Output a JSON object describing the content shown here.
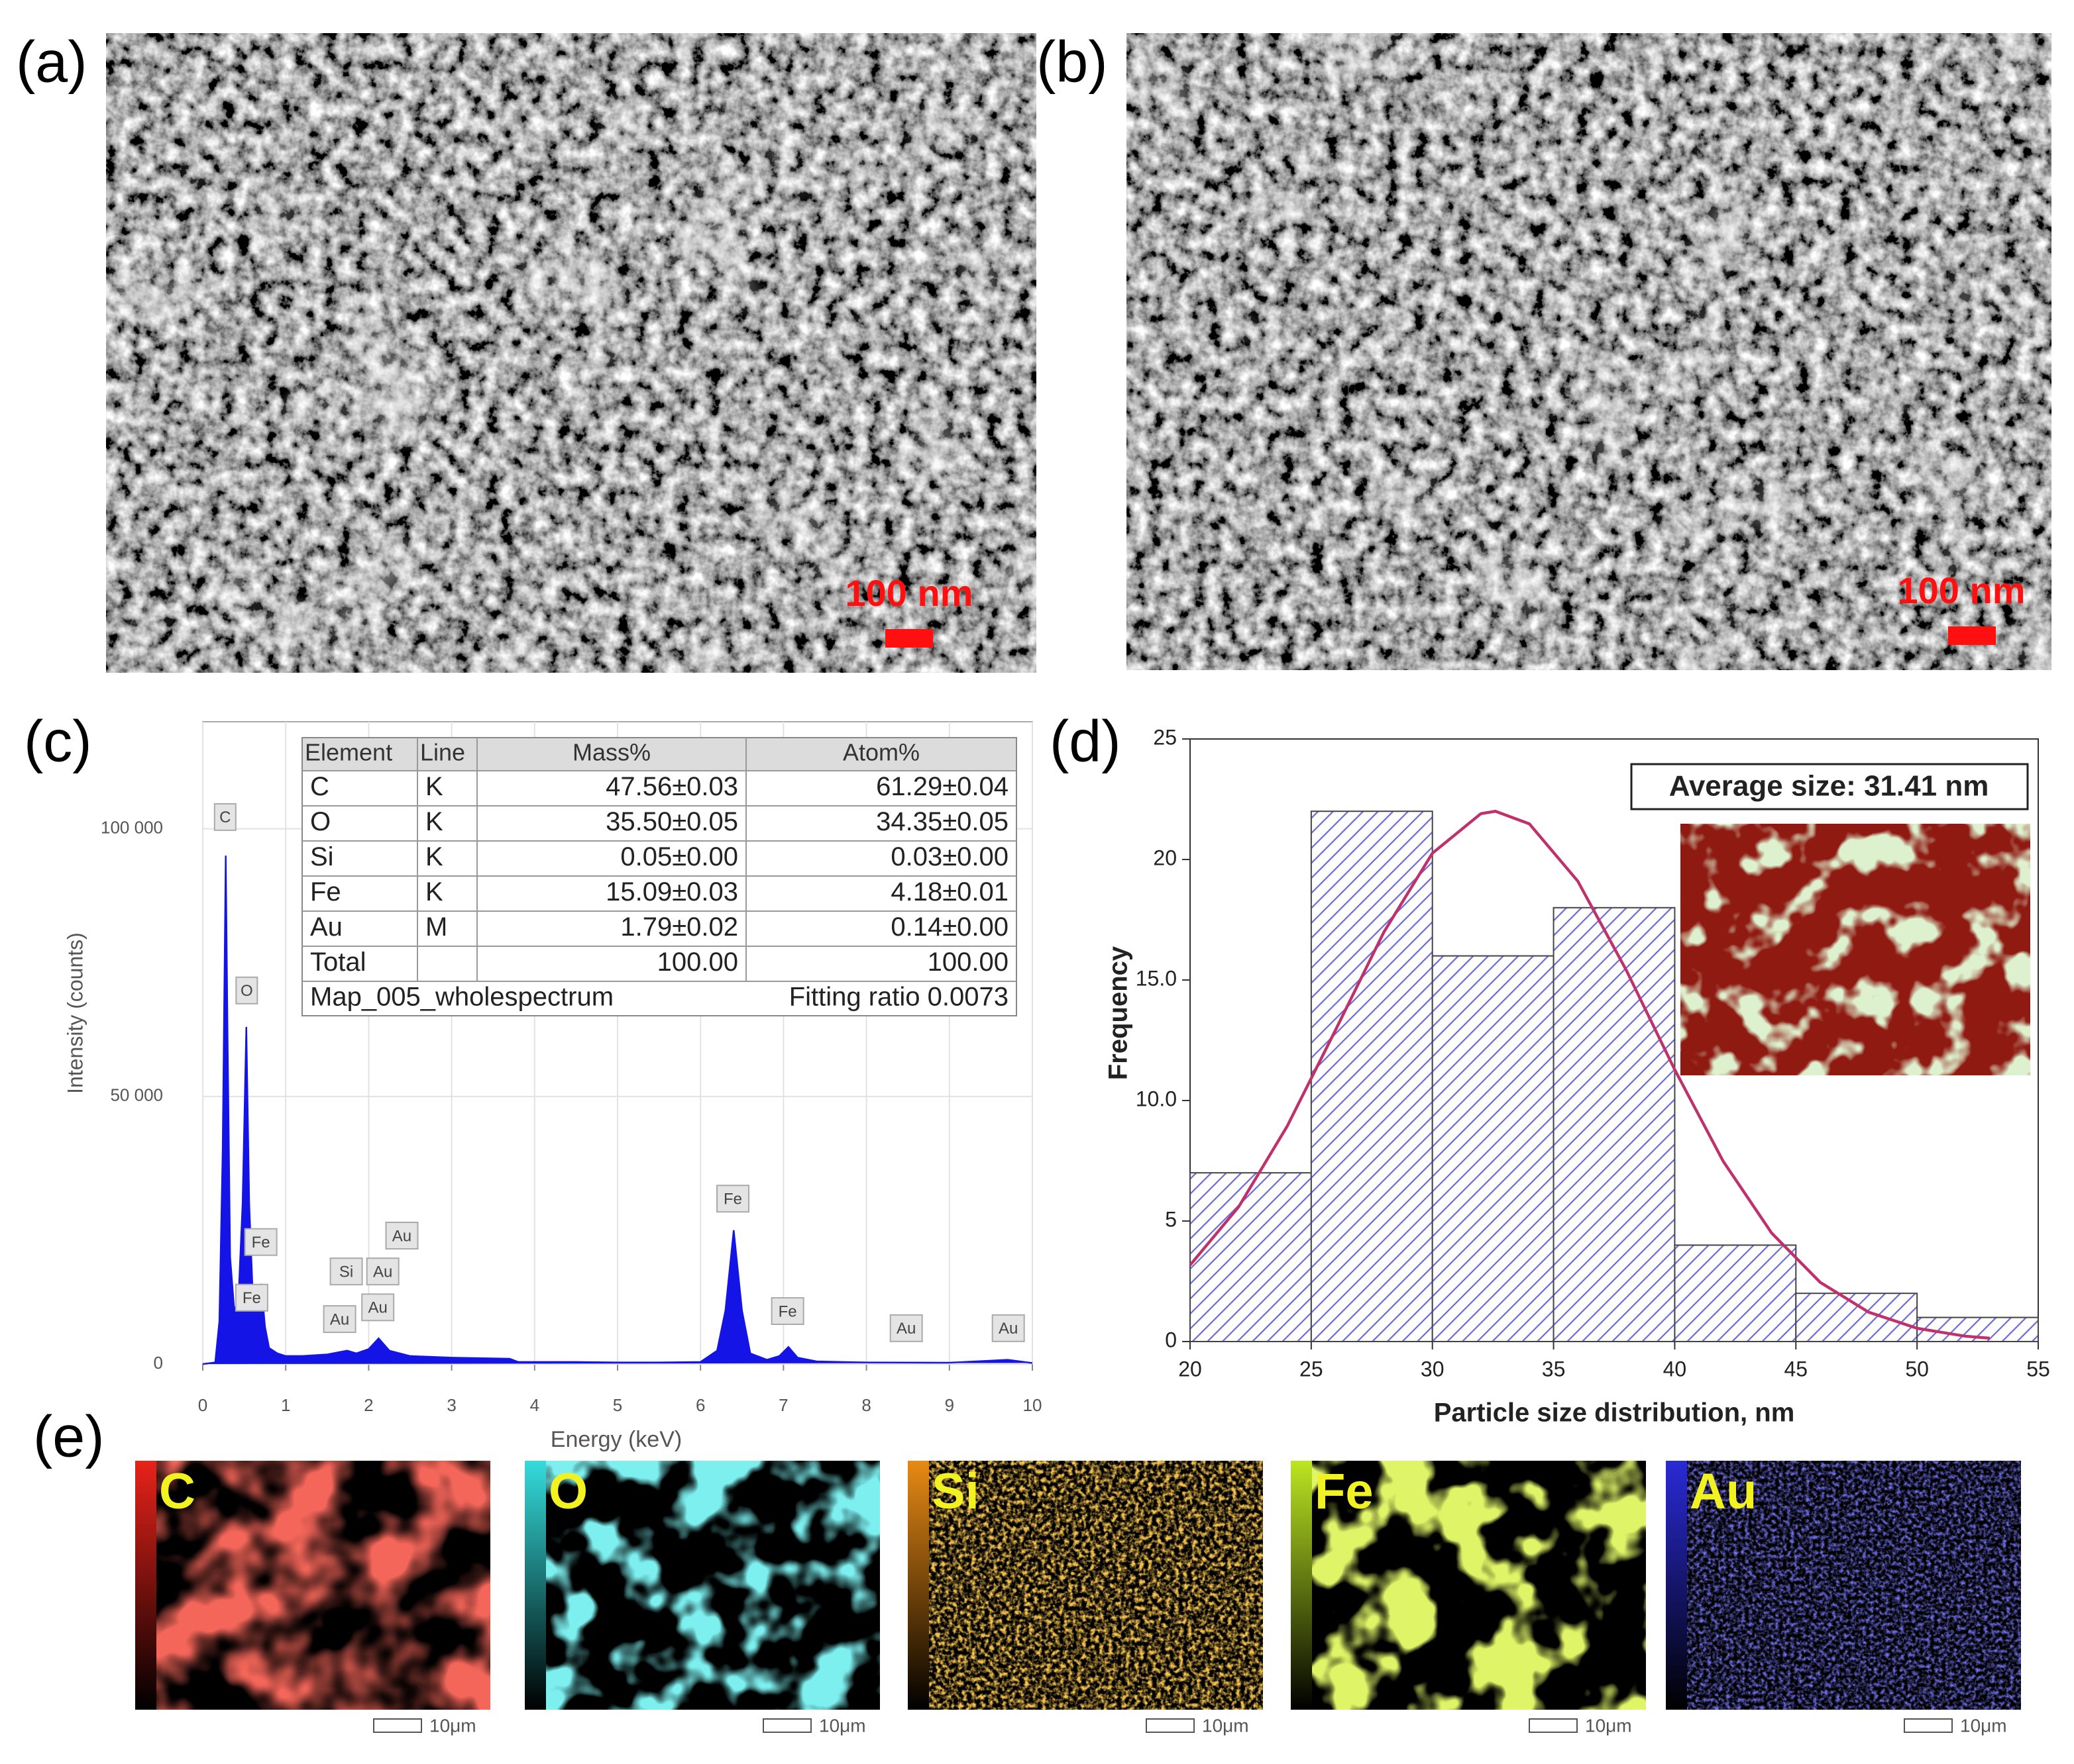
{
  "sem_images": [
    {
      "label": "(a)",
      "scale_bar": "100 nm"
    },
    {
      "label": "(b)",
      "scale_bar": "100 nm"
    }
  ],
  "panel_labels": {
    "c": "(c)",
    "d": "(d)",
    "e": "(e)"
  },
  "chart_data": [
    {
      "type": "line",
      "xlabel": "Energy (keV)",
      "ylabel": "Intensity (counts)",
      "xlim": [
        0,
        10
      ],
      "xticks": [
        0,
        1,
        2,
        3,
        4,
        5,
        6,
        7,
        8,
        9,
        10
      ],
      "ylim": [
        0,
        120000
      ],
      "yticks": [
        0,
        {
          "value": 50000,
          "label": "50 000"
        },
        {
          "value": 100000,
          "label": "100 000"
        }
      ],
      "grid": true,
      "series": [
        {
          "color": "#1414e6",
          "x": [
            0,
            0.15,
            0.2,
            0.24,
            0.277,
            0.3,
            0.33,
            0.38,
            0.43,
            0.48,
            0.525,
            0.56,
            0.6,
            0.65,
            0.705,
            0.75,
            0.8,
            0.9,
            1.0,
            1.2,
            1.5,
            1.74,
            1.85,
            2.0,
            2.12,
            2.25,
            2.5,
            3.0,
            3.7,
            3.8,
            4.5,
            5.0,
            5.5,
            6.0,
            6.2,
            6.3,
            6.4,
            6.5,
            6.6,
            6.8,
            6.95,
            7.06,
            7.17,
            7.4,
            8.0,
            9.0,
            9.7,
            10.0
          ],
          "values": [
            0,
            300,
            8000,
            40000,
            95000,
            60000,
            20000,
            10000,
            12000,
            30000,
            63000,
            30000,
            14000,
            9000,
            15000,
            7000,
            3000,
            2000,
            1500,
            1500,
            1800,
            2500,
            2000,
            2800,
            4800,
            2500,
            1500,
            1200,
            1000,
            400,
            400,
            300,
            300,
            400,
            2500,
            10000,
            25000,
            10000,
            2000,
            800,
            1500,
            3200,
            1200,
            500,
            300,
            250,
            800,
            200
          ]
        }
      ],
      "annotations": [
        {
          "text": "C",
          "x": 0.27,
          "y": 102200
        },
        {
          "text": "O",
          "x": 0.53,
          "y": 69800
        },
        {
          "text": "Fe",
          "x": 0.7,
          "y": 22800
        },
        {
          "text": "Fe",
          "x": 0.59,
          "y": 12400
        },
        {
          "text": "Si",
          "x": 1.73,
          "y": 17300
        },
        {
          "text": "Au",
          "x": 2.4,
          "y": 24000
        },
        {
          "text": "Au",
          "x": 2.17,
          "y": 17300
        },
        {
          "text": "Au",
          "x": 2.11,
          "y": 10600
        },
        {
          "text": "Au",
          "x": 1.65,
          "y": 8400
        },
        {
          "text": "Fe",
          "x": 6.39,
          "y": 30900
        },
        {
          "text": "Fe",
          "x": 7.05,
          "y": 9900
        },
        {
          "text": "Au",
          "x": 8.48,
          "y": 6700
        },
        {
          "text": "Au",
          "x": 9.71,
          "y": 6700
        }
      ]
    },
    {
      "type": "histogram",
      "xlabel": "Particle size distribution, nm",
      "ylabel": "Frequency",
      "annotation": "Average size: 31.41 nm",
      "bins": [
        20,
        25,
        30,
        35,
        40,
        45,
        50,
        55
      ],
      "counts": [
        7,
        22,
        16,
        18,
        4,
        2,
        1
      ],
      "color": "#6a6ad8",
      "fit": {
        "color": "#c0306a",
        "x": [
          20,
          22,
          24,
          26,
          28,
          30,
          32,
          32.6,
          34,
          36,
          38,
          40,
          42,
          44,
          46,
          48,
          50,
          52,
          53
        ],
        "values": [
          3.17,
          5.58,
          8.92,
          12.92,
          16.99,
          20.26,
          21.9,
          22,
          21.48,
          19.1,
          15.41,
          11.28,
          7.48,
          4.5,
          2.46,
          1.22,
          0.55,
          0.22,
          0.14
        ]
      },
      "xlim": [
        20,
        55
      ],
      "xticks": [
        20,
        25,
        30,
        35,
        40,
        45,
        50,
        55
      ],
      "ylim": [
        0,
        25
      ],
      "yticks": [
        0,
        5,
        {
          "value": 10,
          "label": "10.0"
        },
        {
          "value": 15,
          "label": "15.0"
        },
        20,
        25
      ]
    }
  ],
  "eds_table": {
    "header": [
      "Element",
      "Line",
      "Mass%",
      "Atom%"
    ],
    "rows": [
      [
        "C",
        "K",
        "47.56±0.03",
        "61.29±0.04"
      ],
      [
        "O",
        "K",
        "35.50±0.05",
        "34.35±0.05"
      ],
      [
        "Si",
        "K",
        "0.05±0.00",
        "0.03±0.00"
      ],
      [
        "Fe",
        "K",
        "15.09±0.03",
        "4.18±0.01"
      ],
      [
        "Au",
        "M",
        "1.79±0.02",
        "0.14±0.00"
      ]
    ],
    "total": {
      "label": "Total",
      "mass": "100.00",
      "atom": "100.00"
    },
    "footer": {
      "name": "Map_005_wholespectrum",
      "fitting": "Fitting ratio 0.0073"
    }
  },
  "maps": [
    {
      "label": "C",
      "color": "#e8221a",
      "scale_bar": "10μm"
    },
    {
      "label": "O",
      "color": "#34dcdc",
      "scale_bar": "10μm"
    },
    {
      "label": "Si",
      "color": "#e88a14",
      "scale_bar": "10μm"
    },
    {
      "label": "Fe",
      "color": "#bce622",
      "scale_bar": "10μm"
    },
    {
      "label": "Au",
      "color": "#2a2ad6",
      "scale_bar": "10μm"
    }
  ]
}
